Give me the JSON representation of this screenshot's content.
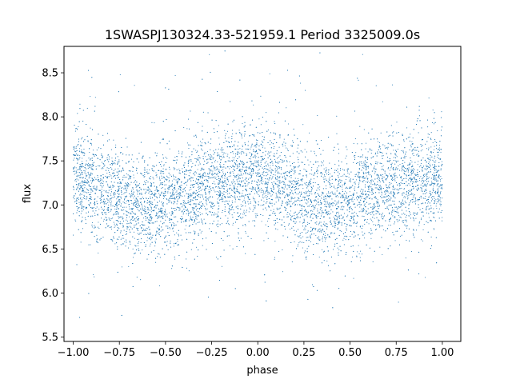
{
  "chart_data": {
    "type": "scatter",
    "title": "1SWASPJ130324.33-521959.1 Period 3325009.0s",
    "xlabel": "phase",
    "ylabel": "flux",
    "xlim": [
      -1.05,
      1.1
    ],
    "ylim": [
      5.45,
      8.8
    ],
    "xticks": [
      -1.0,
      -0.75,
      -0.5,
      -0.25,
      0.0,
      0.25,
      0.5,
      0.75,
      1.0
    ],
    "xtick_labels": [
      "−1.00",
      "−0.75",
      "−0.50",
      "−0.25",
      "0.00",
      "0.25",
      "0.50",
      "0.75",
      "1.00"
    ],
    "yticks": [
      5.5,
      6.0,
      6.5,
      7.0,
      7.5,
      8.0,
      8.5
    ],
    "ytick_labels": [
      "5.5",
      "6.0",
      "6.5",
      "7.0",
      "7.5",
      "8.0",
      "8.5"
    ],
    "grid": false,
    "legend": "none",
    "marker_color": "#1f77b4",
    "phase_range": [
      -1.0,
      1.0
    ],
    "mean_flux_profile": {
      "phase": [
        0.0,
        0.1,
        0.2,
        0.3,
        0.4,
        0.5,
        0.6,
        0.7,
        0.8,
        0.9,
        1.0
      ],
      "flux": [
        7.32,
        7.25,
        7.12,
        7.02,
        6.98,
        7.03,
        7.12,
        7.2,
        7.25,
        7.3,
        7.32
      ]
    },
    "typical_scatter": 0.28,
    "flux_extent": [
      5.6,
      8.78
    ]
  }
}
